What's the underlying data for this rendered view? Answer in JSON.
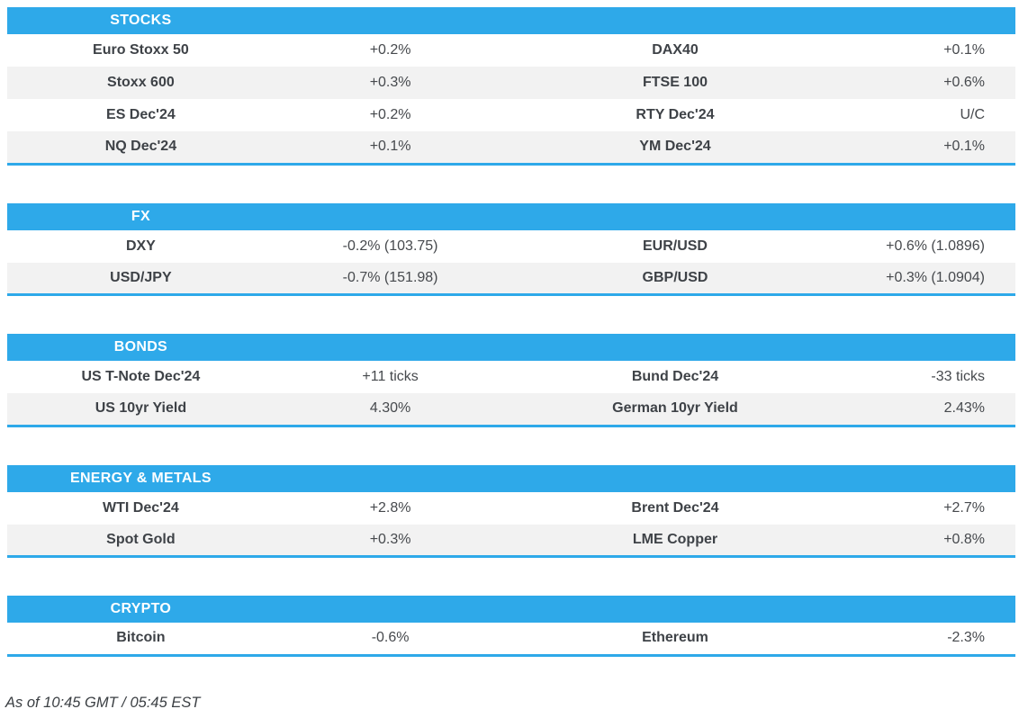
{
  "theme": {
    "accent": "#2EA9E9",
    "stripe": "#F2F2F2",
    "label_color": "#3E4247",
    "value_color": "#46494D",
    "header_text": "#FFFFFF",
    "footer_color": "#3C4044"
  },
  "sections": [
    {
      "id": "stocks",
      "title": "STOCKS",
      "rows": [
        {
          "left_label": "Euro Stoxx 50",
          "left_value": "+0.2%",
          "right_label": "DAX40",
          "right_value": "+0.1%"
        },
        {
          "left_label": "Stoxx 600",
          "left_value": "+0.3%",
          "right_label": "FTSE 100",
          "right_value": "+0.6%"
        },
        {
          "left_label": "ES Dec'24",
          "left_value": "+0.2%",
          "right_label": "RTY Dec'24",
          "right_value": "U/C"
        },
        {
          "left_label": "NQ Dec'24",
          "left_value": "+0.1%",
          "right_label": "YM Dec'24",
          "right_value": "+0.1%"
        }
      ]
    },
    {
      "id": "fx",
      "title": "FX",
      "rows": [
        {
          "left_label": "DXY",
          "left_value": "-0.2% (103.75)",
          "right_label": "EUR/USD",
          "right_value": "+0.6% (1.0896)"
        },
        {
          "left_label": "USD/JPY",
          "left_value": "-0.7% (151.98)",
          "right_label": "GBP/USD",
          "right_value": "+0.3% (1.0904)"
        }
      ]
    },
    {
      "id": "bonds",
      "title": "BONDS",
      "rows": [
        {
          "left_label": "US T-Note Dec'24",
          "left_value": "+11 ticks",
          "right_label": "Bund Dec'24",
          "right_value": "-33 ticks"
        },
        {
          "left_label": "US 10yr Yield",
          "left_value": "4.30%",
          "right_label": "German 10yr Yield",
          "right_value": "2.43%"
        }
      ]
    },
    {
      "id": "energy-metals",
      "title": "ENERGY & METALS",
      "rows": [
        {
          "left_label": "WTI Dec'24",
          "left_value": "+2.8%",
          "right_label": "Brent Dec'24",
          "right_value": "+2.7%"
        },
        {
          "left_label": "Spot Gold",
          "left_value": "+0.3%",
          "right_label": "LME Copper",
          "right_value": "+0.8%"
        }
      ]
    },
    {
      "id": "crypto",
      "title": "CRYPTO",
      "rows": [
        {
          "left_label": "Bitcoin",
          "left_value": "-0.6%",
          "right_label": "Ethereum",
          "right_value": "-2.3%"
        }
      ]
    }
  ],
  "footer": {
    "timestamp": "As of 10:45 GMT / 05:45 EST"
  }
}
